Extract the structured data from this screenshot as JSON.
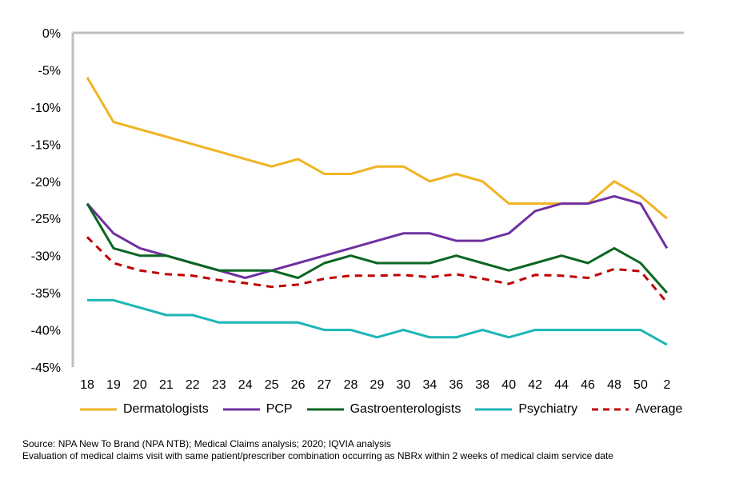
{
  "chart_data": {
    "type": "line",
    "categories": [
      "18",
      "19",
      "20",
      "21",
      "22",
      "23",
      "24",
      "25",
      "26",
      "27",
      "28",
      "29",
      "30",
      "34",
      "36",
      "38",
      "40",
      "42",
      "44",
      "46",
      "48",
      "50",
      "2"
    ],
    "ylim": [
      -45,
      0
    ],
    "yticks": [
      "0%",
      "-5%",
      "-10%",
      "-15%",
      "-20%",
      "-25%",
      "-30%",
      "-35%",
      "-40%",
      "-45%"
    ],
    "grid": false,
    "legend_position": "bottom",
    "series": [
      {
        "name": "Dermatologists",
        "color": "#F0B323",
        "dash": false,
        "values": [
          -6,
          -12,
          -13,
          -14,
          -15,
          -16,
          -17,
          -18,
          -17,
          -19,
          -19,
          -18,
          -18,
          -20,
          -19,
          -20,
          -23,
          -23,
          -23,
          -23,
          -20,
          -22,
          -25
        ]
      },
      {
        "name": "PCP",
        "color": "#7030A0",
        "dash": false,
        "values": [
          -23,
          -27,
          -29,
          -30,
          -31,
          -32,
          -33,
          -32,
          -31,
          -30,
          -29,
          -28,
          -27,
          -27,
          -28,
          -28,
          -27,
          -24,
          -23,
          -23,
          -22,
          -23,
          -29
        ]
      },
      {
        "name": "Gastroenterologists",
        "color": "#0B6623",
        "dash": false,
        "values": [
          -23,
          -29,
          -30,
          -30,
          -31,
          -32,
          -32,
          -32,
          -33,
          -31,
          -30,
          -31,
          -31,
          -31,
          -30,
          -31,
          -32,
          -31,
          -30,
          -31,
          -29,
          -31,
          -35
        ]
      },
      {
        "name": "Psychiatry",
        "color": "#1DB5B5",
        "dash": false,
        "values": [
          -36,
          -36,
          -37,
          -38,
          -38,
          -39,
          -39,
          -39,
          -39,
          -40,
          -40,
          -41,
          -40,
          -41,
          -41,
          -40,
          -41,
          -40,
          -40,
          -40,
          -40,
          -40,
          -42
        ]
      },
      {
        "name": "Average",
        "color": "#C00000",
        "dash": true,
        "values": [
          -27.5,
          -31,
          -32,
          -32.5,
          -32.7,
          -33.3,
          -33.7,
          -34.2,
          -33.9,
          -33.1,
          -32.7,
          -32.7,
          -32.6,
          -32.9,
          -32.5,
          -33.1,
          -33.8,
          -32.6,
          -32.7,
          -33,
          -31.8,
          -32.1,
          -36.3
        ]
      }
    ]
  },
  "footer": {
    "source": "Source: NPA New To Brand (NPA NTB); Medical Claims analysis; 2020; IQVIA analysis",
    "note": "Evaluation of medical claims visit with same patient/prescriber combination occurring as NBRx within 2 weeks of medical claim service date"
  }
}
